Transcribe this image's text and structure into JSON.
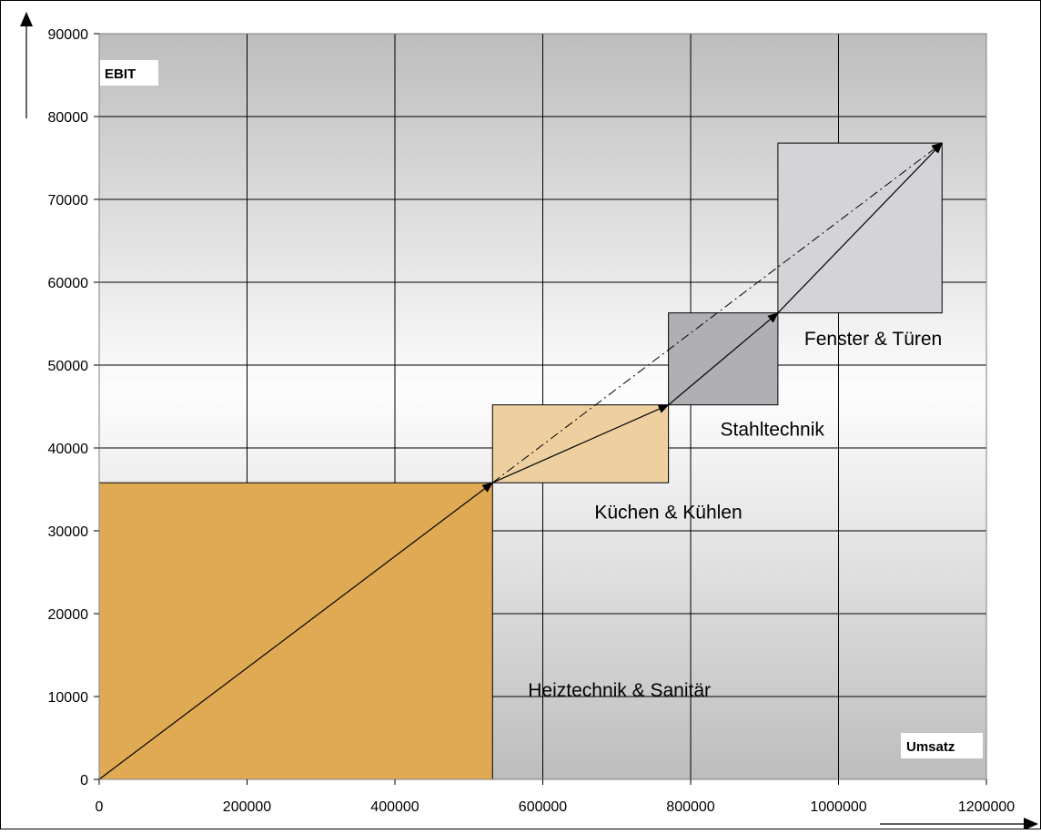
{
  "chart_data": {
    "type": "area",
    "title": "",
    "xlabel": "Umsatz",
    "ylabel": "EBIT",
    "xlim": [
      0,
      1200000
    ],
    "ylim": [
      0,
      90000
    ],
    "x_ticks": [
      0,
      200000,
      400000,
      600000,
      800000,
      1000000,
      1200000
    ],
    "y_ticks": [
      0,
      10000,
      20000,
      30000,
      40000,
      50000,
      60000,
      70000,
      80000,
      90000
    ],
    "grid": true,
    "segments": [
      {
        "name": "Heiztechnik & Sanitär",
        "x0": 0,
        "x1": 532000,
        "y0": 0,
        "y1": 35800,
        "color": "#e0aa55"
      },
      {
        "name": "Küchen & Kühlen",
        "x0": 532000,
        "x1": 770000,
        "y0": 35800,
        "y1": 45200,
        "color": "#eed0a0"
      },
      {
        "name": "Stahltechnik",
        "x0": 770000,
        "x1": 918000,
        "y0": 45200,
        "y1": 56300,
        "color": "#b0b0b4"
      },
      {
        "name": "Fenster & Türen",
        "x0": 918000,
        "x1": 1140000,
        "y0": 56300,
        "y1": 76800,
        "color": "#d4d4d8"
      }
    ],
    "path_points": [
      {
        "x": 0,
        "y": 0
      },
      {
        "x": 532000,
        "y": 35800
      },
      {
        "x": 770000,
        "y": 45200
      },
      {
        "x": 918000,
        "y": 56300
      },
      {
        "x": 1140000,
        "y": 76800
      }
    ],
    "dashdot_line": {
      "from": {
        "x": 532000,
        "y": 35800
      },
      "to": {
        "x": 1140000,
        "y": 76800
      }
    }
  }
}
